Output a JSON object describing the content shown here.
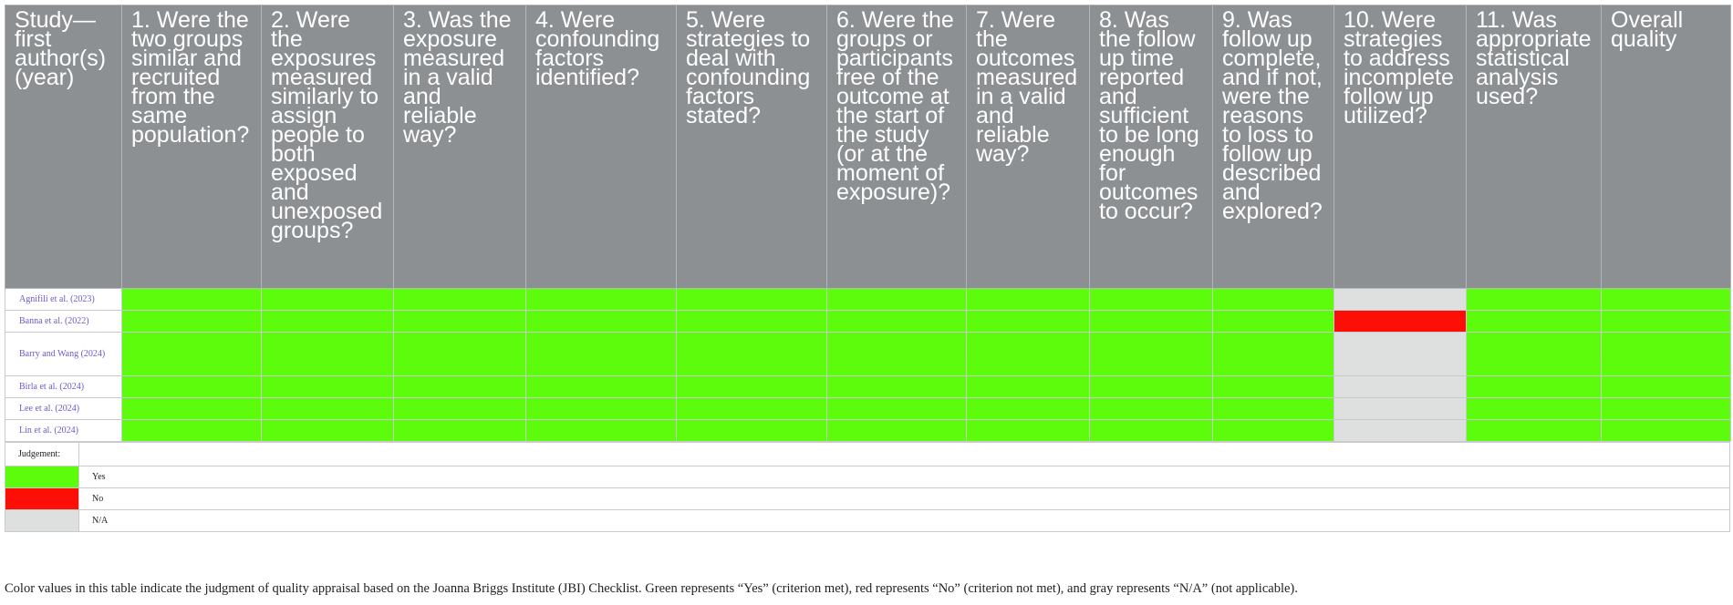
{
  "table": {
    "headers": [
      "Study—first author(s) (year)",
      "1. Were the two groups similar and recruited from the same population?",
      "2. Were the exposures measured similarly to assign people to both exposed and unexposed groups?",
      "3. Was the exposure measured in a valid and reliable way?",
      "4. Were confounding factors identified?",
      "5. Were strategies to deal with confounding factors stated?",
      "6. Were the groups or participants free of the outcome at the start of the study (or at the moment of exposure)?",
      "7. Were the outcomes measured in a valid and reliable way?",
      "8. Was the follow up time reported and sufficient to be long enough for outcomes to occur?",
      "9. Was follow up complete, and if not, were the reasons to loss to follow up described and explored?",
      "10. Were strategies to address incomplete follow up utilized?",
      "11. Was appropriate statistical analysis used?",
      "Overall quality"
    ],
    "rows": [
      {
        "study": "Agnifili et al. (2023)",
        "judgments": [
          "Yes",
          "Yes",
          "Yes",
          "Yes",
          "Yes",
          "Yes",
          "Yes",
          "Yes",
          "Yes",
          "N/A",
          "Yes",
          "Yes"
        ]
      },
      {
        "study": "Banna et al. (2022)",
        "judgments": [
          "Yes",
          "Yes",
          "Yes",
          "Yes",
          "Yes",
          "Yes",
          "Yes",
          "Yes",
          "Yes",
          "No",
          "Yes",
          "Yes"
        ]
      },
      {
        "study": "Barry and Wang (2024)",
        "judgments": [
          "Yes",
          "Yes",
          "Yes",
          "Yes",
          "Yes",
          "Yes",
          "Yes",
          "Yes",
          "Yes",
          "N/A",
          "Yes",
          "Yes"
        ]
      },
      {
        "study": "Birla et al. (2024)",
        "judgments": [
          "Yes",
          "Yes",
          "Yes",
          "Yes",
          "Yes",
          "Yes",
          "Yes",
          "Yes",
          "Yes",
          "N/A",
          "Yes",
          "Yes"
        ]
      },
      {
        "study": "Lee et al. (2024)",
        "judgments": [
          "Yes",
          "Yes",
          "Yes",
          "Yes",
          "Yes",
          "Yes",
          "Yes",
          "Yes",
          "Yes",
          "N/A",
          "Yes",
          "Yes"
        ]
      },
      {
        "study": "Lin et al. (2024)",
        "judgments": [
          "Yes",
          "Yes",
          "Yes",
          "Yes",
          "Yes",
          "Yes",
          "Yes",
          "Yes",
          "Yes",
          "N/A",
          "Yes",
          "Yes"
        ]
      }
    ]
  },
  "legend": {
    "title": "Judgement:",
    "items": [
      {
        "label": "Yes",
        "color": "#5dfc0d"
      },
      {
        "label": "No",
        "color": "#fd0e07"
      },
      {
        "label": "N/A",
        "color": "#dde0de"
      }
    ]
  },
  "colors": {
    "yes": "#5dfc0d",
    "no": "#fd0e07",
    "na": "#dde0de",
    "header": "#8c9093",
    "study_text": "#6a5acd"
  },
  "caption": "Color values in this table indicate the judgment of quality appraisal based on the Joanna Briggs Institute (JBI) Checklist. Green represents “Yes” (criterion met), red represents “No” (criterion not met), and gray represents “N/A” (not applicable)."
}
